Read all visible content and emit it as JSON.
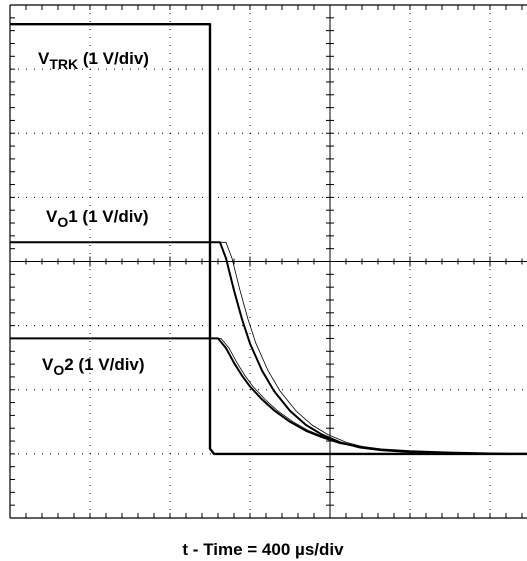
{
  "chart_data": {
    "type": "line",
    "title": "",
    "xlabel": "t - Time = 400 µs/div",
    "ylabel": "",
    "grid": true,
    "divisions": {
      "x": 8,
      "y": 8
    },
    "x_unit": "µs",
    "y_unit": "V",
    "x_range_us": [
      0,
      3200
    ],
    "series": [
      {
        "name_base": "V",
        "name_sub": "TRK",
        "name_suffix": " (1 V/div)",
        "label_text": "VTRK (1 V/div)",
        "volts_per_div": 1,
        "ref_div": 0,
        "points": [
          [
            0,
            6.7
          ],
          [
            1000,
            6.7
          ],
          [
            1000.1,
            0.08
          ],
          [
            1020,
            0.0
          ],
          [
            1100,
            0.0
          ],
          [
            3200,
            0.0
          ]
        ]
      },
      {
        "name_base": "V",
        "name_sub": "O",
        "name_suffix": "1 (1 V/div)",
        "label_text": "VO1 (1 V/div)",
        "volts_per_div": 1,
        "ref_div": 0,
        "points": [
          [
            0,
            3.3
          ],
          [
            1050,
            3.3
          ],
          [
            1080,
            3.05
          ],
          [
            1120,
            2.55
          ],
          [
            1160,
            2.1
          ],
          [
            1200,
            1.72
          ],
          [
            1260,
            1.3
          ],
          [
            1320,
            0.98
          ],
          [
            1400,
            0.67
          ],
          [
            1480,
            0.45
          ],
          [
            1560,
            0.3
          ],
          [
            1650,
            0.18
          ],
          [
            1750,
            0.1
          ],
          [
            1850,
            0.06
          ],
          [
            2000,
            0.03
          ],
          [
            2200,
            0.01
          ],
          [
            2500,
            0.0
          ],
          [
            3200,
            0.0
          ]
        ]
      },
      {
        "name_base": "V",
        "name_sub": "O",
        "name_suffix": "2 (1 V/div)",
        "label_text": "VO2 (1 V/div)",
        "volts_per_div": 1,
        "ref_div": 0,
        "points": [
          [
            0,
            1.8
          ],
          [
            1040,
            1.8
          ],
          [
            1080,
            1.65
          ],
          [
            1120,
            1.42
          ],
          [
            1160,
            1.22
          ],
          [
            1200,
            1.05
          ],
          [
            1260,
            0.85
          ],
          [
            1320,
            0.68
          ],
          [
            1400,
            0.5
          ],
          [
            1480,
            0.36
          ],
          [
            1560,
            0.26
          ],
          [
            1650,
            0.17
          ],
          [
            1750,
            0.11
          ],
          [
            1850,
            0.07
          ],
          [
            2000,
            0.04
          ],
          [
            2200,
            0.02
          ],
          [
            2500,
            0.0
          ],
          [
            3200,
            0.0
          ]
        ]
      }
    ]
  }
}
